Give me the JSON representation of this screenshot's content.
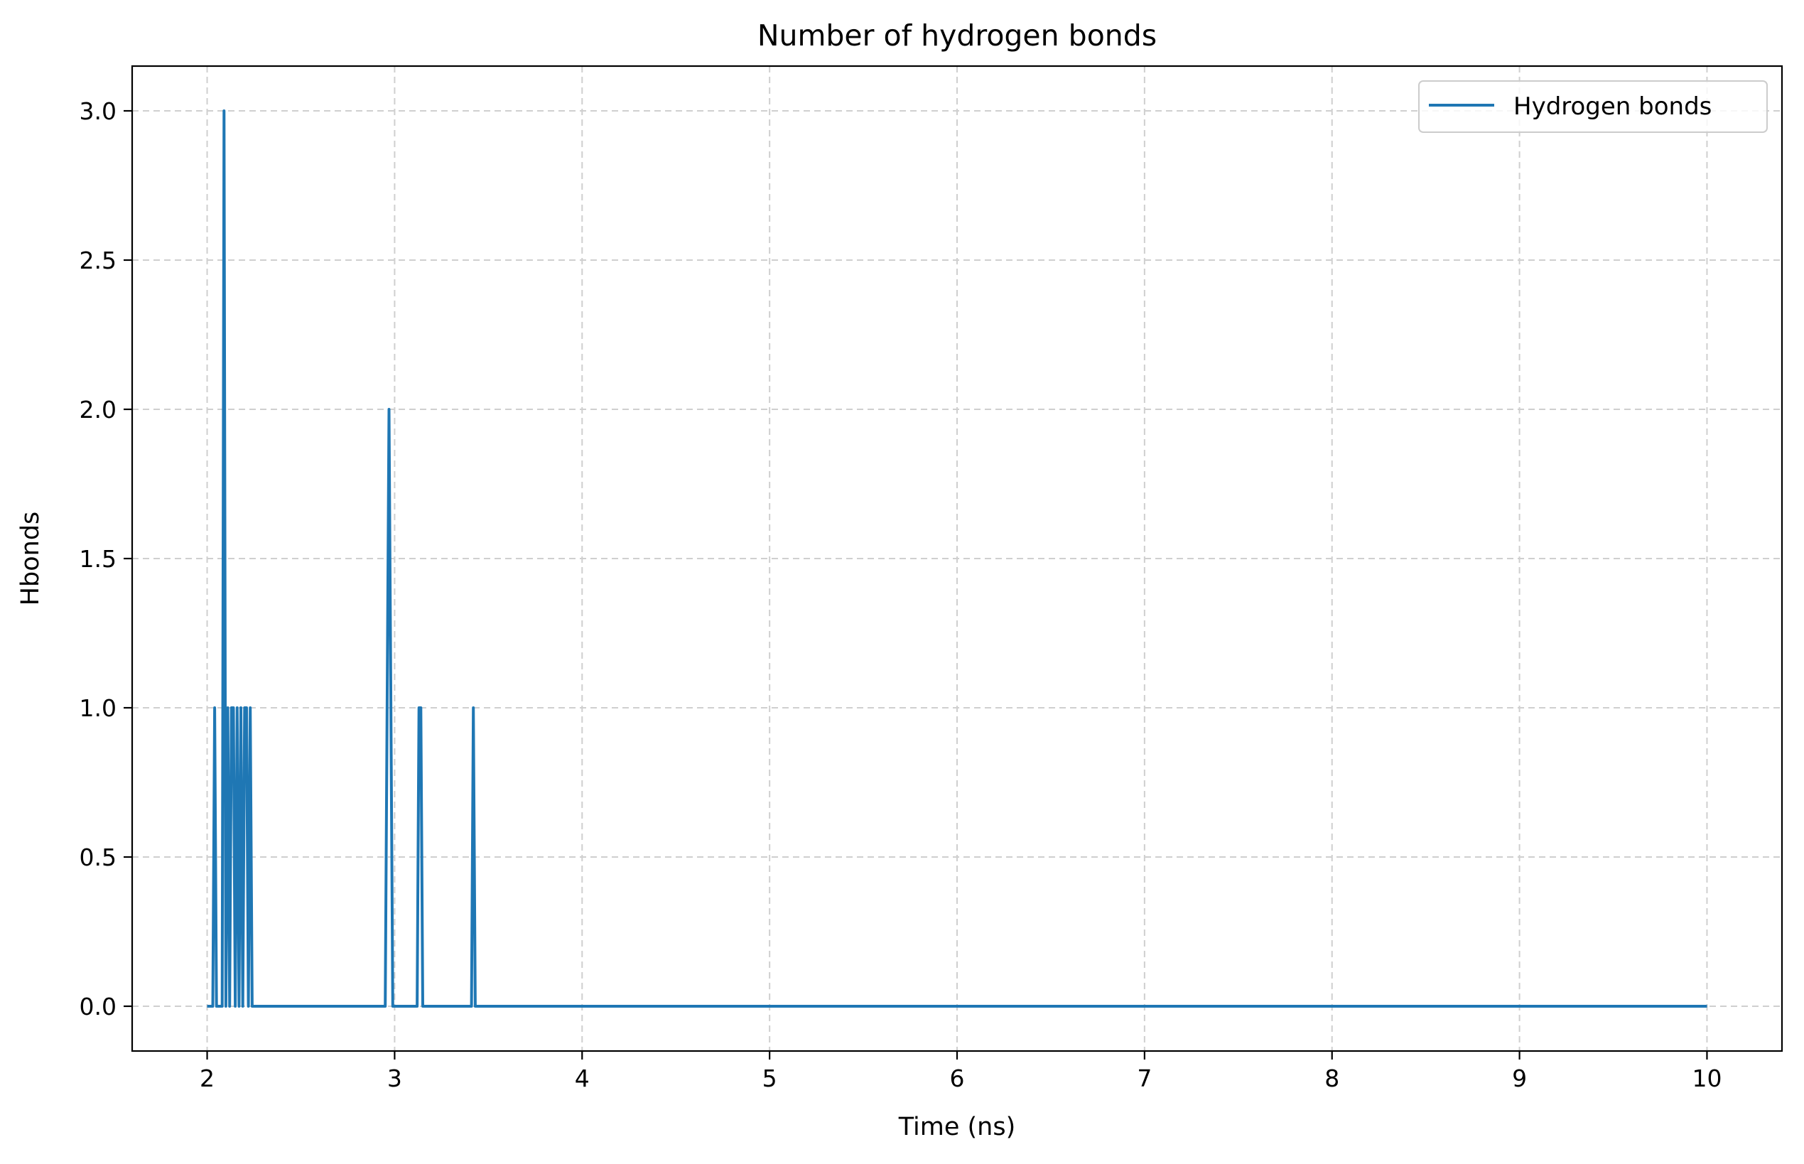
{
  "chart_data": {
    "type": "line",
    "title": "Number of hydrogen bonds",
    "xlabel": "Time (ns)",
    "ylabel": "Hbonds",
    "xlim": [
      1.6,
      10.4
    ],
    "ylim": [
      -0.15,
      3.15
    ],
    "xticks": [
      2,
      3,
      4,
      5,
      6,
      7,
      8,
      9,
      10
    ],
    "xtick_labels": [
      "2",
      "3",
      "4",
      "5",
      "6",
      "7",
      "8",
      "9",
      "10"
    ],
    "yticks": [
      0.0,
      0.5,
      1.0,
      1.5,
      2.0,
      2.5,
      3.0
    ],
    "ytick_labels": [
      "0.0",
      "0.5",
      "1.0",
      "1.5",
      "2.0",
      "2.5",
      "3.0"
    ],
    "grid": true,
    "legend_position": "top-right",
    "series": [
      {
        "name": "Hydrogen bonds",
        "color": "#1f77b4",
        "x": [
          2.0,
          2.03,
          2.04,
          2.05,
          2.06,
          2.08,
          2.09,
          2.1,
          2.11,
          2.12,
          2.13,
          2.14,
          2.15,
          2.16,
          2.17,
          2.18,
          2.19,
          2.2,
          2.21,
          2.22,
          2.23,
          2.24,
          2.95,
          2.97,
          2.99,
          3.12,
          3.13,
          3.14,
          3.15,
          3.41,
          3.42,
          3.43,
          3.44,
          10.0
        ],
        "y": [
          0,
          0,
          1,
          0,
          0,
          0,
          3,
          0,
          1,
          0,
          1,
          1,
          0,
          1,
          0,
          1,
          0,
          1,
          1,
          0,
          1,
          0,
          0,
          2,
          0,
          0,
          1,
          1,
          0,
          0,
          1,
          0,
          0,
          0
        ]
      }
    ]
  }
}
